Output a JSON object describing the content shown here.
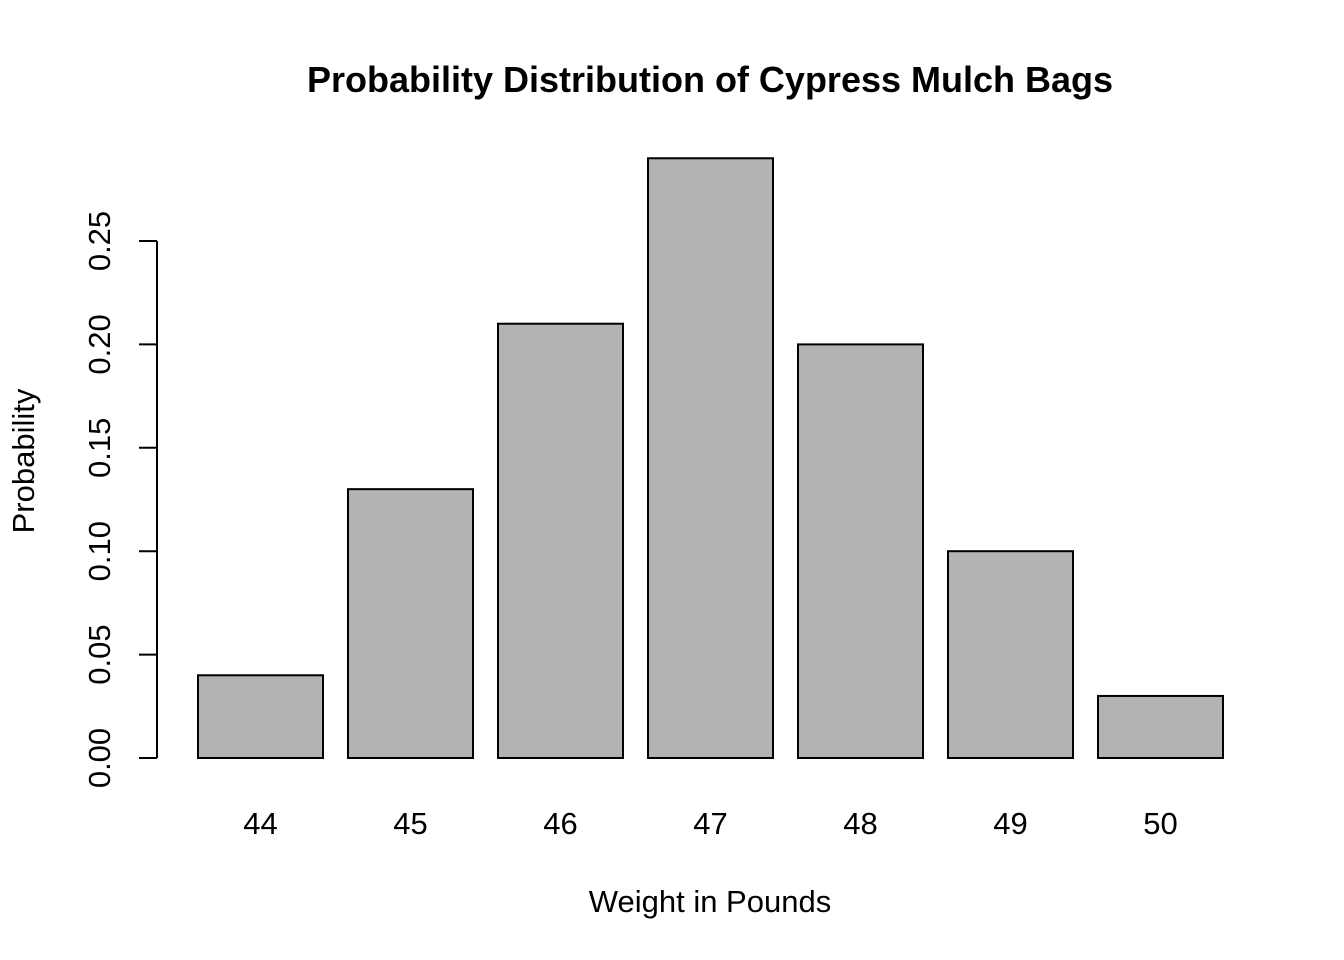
{
  "chart_data": {
    "type": "bar",
    "title": "Probability Distribution of Cypress Mulch Bags",
    "xlabel": "Weight in Pounds",
    "ylabel": "Probability",
    "categories": [
      "44",
      "45",
      "46",
      "47",
      "48",
      "49",
      "50"
    ],
    "values": [
      0.04,
      0.13,
      0.21,
      0.29,
      0.2,
      0.1,
      0.03
    ],
    "yticks": [
      "0.00",
      "0.05",
      "0.10",
      "0.15",
      "0.20",
      "0.25"
    ],
    "ylim": [
      0,
      0.29
    ],
    "grid": false,
    "bar_color": "#b3b3b3",
    "bar_border_color": "#000000"
  }
}
